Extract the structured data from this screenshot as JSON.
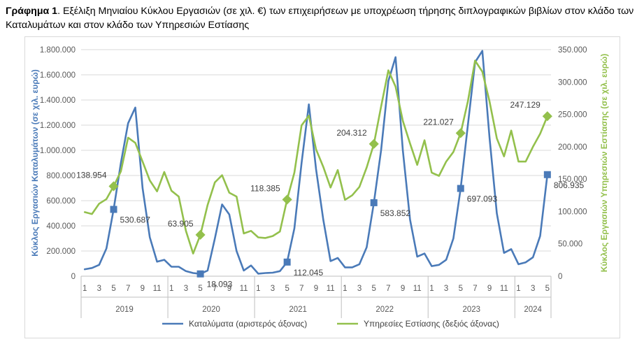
{
  "title": {
    "prefix": "Γράφημα 1",
    "text": ". Εξέλιξη Μηνιαίου Κύκλου Εργασιών (σε χιλ. €) των επιχειρήσεων με υποχρέωση τήρησης διπλογραφικών βιβλίων στον κλάδο των Καταλυμάτων και στον κλάδο των Υπηρεσιών Εστίασης"
  },
  "chart_data": {
    "type": "line",
    "x_months": [
      1,
      2,
      3,
      4,
      5,
      6,
      7,
      8,
      9,
      10,
      11,
      12,
      1,
      2,
      3,
      4,
      5,
      6,
      7,
      8,
      9,
      10,
      11,
      12,
      1,
      2,
      3,
      4,
      5,
      6,
      7,
      8,
      9,
      10,
      11,
      12,
      1,
      2,
      3,
      4,
      5,
      6,
      7,
      8,
      9,
      10,
      11,
      12,
      1,
      2,
      3,
      4,
      5,
      6,
      7,
      8,
      9,
      10,
      11,
      12,
      1,
      2,
      3,
      4,
      5
    ],
    "x_tick_labels": [
      "1",
      "3",
      "5",
      "7",
      "9",
      "11",
      "1",
      "3",
      "5",
      "7",
      "9",
      "11",
      "1",
      "3",
      "5",
      "7",
      "9",
      "11",
      "1",
      "3",
      "5",
      "7",
      "9",
      "11",
      "1",
      "3",
      "5",
      "7",
      "9",
      "11",
      "1",
      "3",
      "5"
    ],
    "years": [
      "2019",
      "2020",
      "2021",
      "2022",
      "2023",
      "2024"
    ],
    "year_month_counts": [
      12,
      12,
      12,
      12,
      12,
      5
    ],
    "y_left": {
      "label": "Κύκλος Εργασιών Καταλυμάτων (σε χιλ. ευρώ)",
      "ylim": [
        0,
        1800000
      ],
      "tick_labels": [
        "0",
        "200.000",
        "400.000",
        "600.000",
        "800.000",
        "1.000.000",
        "1.200.000",
        "1.400.000",
        "1.600.000",
        "1.800.000"
      ]
    },
    "y_right": {
      "label": "Κύκλος Εργασιών Υπηρεσιών Εστίασης (σε χιλ. ευρώ)",
      "ylim": [
        0,
        350000
      ],
      "tick_labels": [
        "0",
        "50.000",
        "100.000",
        "150.000",
        "200.000",
        "250.000",
        "300.000",
        "350.000"
      ]
    },
    "grid": true,
    "legend_position": "bottom",
    "series": [
      {
        "name": "Καταλύματα (αριστερός άξονας)",
        "axis": "left",
        "color": "#4a7ab8",
        "values": [
          55000,
          65000,
          90000,
          220000,
          530687,
          900000,
          1215000,
          1340000,
          700000,
          310000,
          115000,
          130000,
          75000,
          75000,
          40000,
          25000,
          18093,
          45000,
          300000,
          570000,
          490000,
          200000,
          45000,
          85000,
          20000,
          25000,
          28000,
          40000,
          112045,
          380000,
          900000,
          1365000,
          850000,
          450000,
          120000,
          145000,
          70000,
          70000,
          95000,
          230000,
          583852,
          1000000,
          1550000,
          1740000,
          1000000,
          450000,
          155000,
          180000,
          80000,
          90000,
          130000,
          300000,
          697093,
          1200000,
          1700000,
          1790000,
          1100000,
          500000,
          185000,
          215000,
          95000,
          110000,
          150000,
          320000,
          806935
        ]
      },
      {
        "name": "Υπηρεσίες Εστίασης (δεξιός άξονας)",
        "axis": "right",
        "color": "#93c04c",
        "values": [
          99000,
          96000,
          112000,
          119000,
          138954,
          162000,
          214000,
          206000,
          177000,
          148000,
          131000,
          161000,
          132000,
          123000,
          70000,
          35000,
          63905,
          110000,
          145000,
          156000,
          129000,
          123000,
          66000,
          70000,
          60000,
          59000,
          62000,
          69000,
          118385,
          160000,
          233000,
          248000,
          196000,
          169000,
          137000,
          164000,
          118000,
          125000,
          138000,
          168000,
          204312,
          262000,
          318000,
          293000,
          240000,
          205000,
          172000,
          210000,
          160000,
          155000,
          177000,
          192000,
          221027,
          270000,
          333000,
          316000,
          270000,
          213000,
          185000,
          225000,
          177000,
          177000,
          200000,
          220000,
          247129
        ]
      }
    ],
    "annotations": [
      {
        "series": 0,
        "index": 4,
        "label": "530.687"
      },
      {
        "series": 0,
        "index": 16,
        "label": "18.093"
      },
      {
        "series": 0,
        "index": 28,
        "label": "112.045"
      },
      {
        "series": 0,
        "index": 40,
        "label": "583.852"
      },
      {
        "series": 0,
        "index": 52,
        "label": "697.093"
      },
      {
        "series": 0,
        "index": 64,
        "label": "806.935"
      },
      {
        "series": 1,
        "index": 4,
        "label": "138.954"
      },
      {
        "series": 1,
        "index": 16,
        "label": "63.905"
      },
      {
        "series": 1,
        "index": 28,
        "label": "118.385"
      },
      {
        "series": 1,
        "index": 40,
        "label": "204.312"
      },
      {
        "series": 1,
        "index": 52,
        "label": "221.027"
      },
      {
        "series": 1,
        "index": 64,
        "label": "247.129"
      }
    ]
  }
}
